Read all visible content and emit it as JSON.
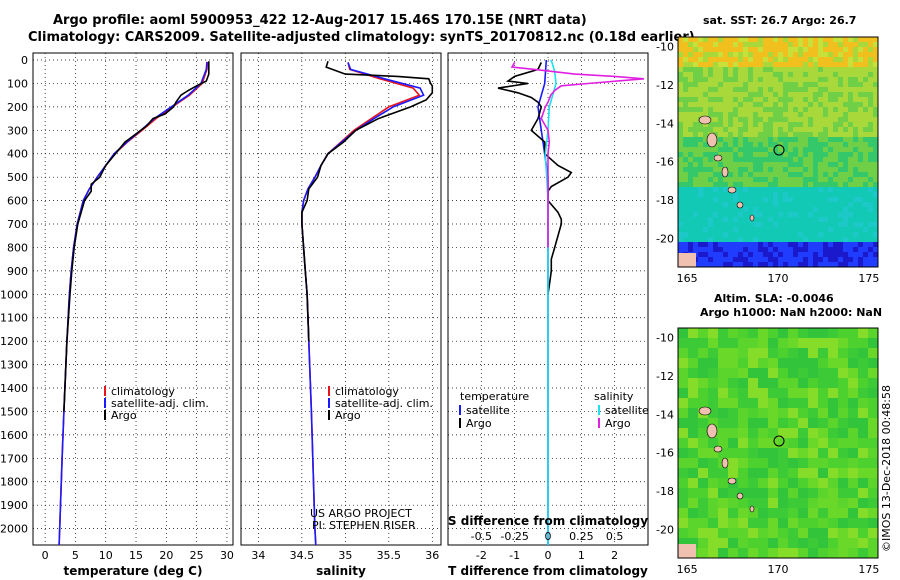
{
  "title_line1": "Argo profile: aoml 5900953_422 12-Aug-2017 15.46S 170.15E (NRT data)",
  "title_line2": "Climatology: CARS2009. Satellite-adjusted climatology: synTS_20170812.nc (0.18d earlier)",
  "colors": {
    "climatology": "#e8141c",
    "satellite": "#1a1aff",
    "argo": "#000000",
    "s_satellite": "#1ee0f0",
    "s_argo": "#e020e0"
  },
  "depth_axis": {
    "ticks": [
      0,
      100,
      200,
      300,
      400,
      500,
      600,
      700,
      800,
      900,
      1000,
      1100,
      1200,
      1300,
      1400,
      1500,
      1600,
      1700,
      1800,
      1900,
      2000
    ],
    "range": [
      2070,
      -30
    ]
  },
  "chart_data": [
    {
      "type": "line",
      "name": "temperature-profile",
      "xlabel": "temperature (deg C)",
      "xlim": [
        -2,
        31
      ],
      "xticks": [
        0,
        5,
        10,
        15,
        20,
        25,
        30
      ],
      "ylim": [
        2070,
        -30
      ],
      "legend": [
        "climatology",
        "satellite-adj. clim.",
        "Argo"
      ],
      "series": [
        {
          "name": "climatology",
          "depth": [
            8,
            40,
            100,
            150,
            200,
            250,
            300,
            350,
            400,
            500,
            550,
            600,
            700,
            800,
            900,
            1000,
            1200,
            1500,
            1700,
            2000,
            2070
          ],
          "values": [
            26.8,
            26.7,
            25.9,
            23.8,
            21,
            18.3,
            16,
            13.6,
            11.5,
            8.6,
            7.3,
            6.3,
            5.3,
            4.7,
            4.3,
            4,
            3.6,
            3.1,
            2.8,
            2.4,
            2.3
          ]
        },
        {
          "name": "satellite-adj. clim.",
          "depth": [
            8,
            40,
            100,
            150,
            200,
            250,
            300,
            350,
            400,
            500,
            550,
            600,
            700,
            800,
            900,
            1000,
            1200,
            1500,
            1700,
            2000,
            2070
          ],
          "values": [
            26.7,
            26.6,
            25.7,
            23.6,
            20.8,
            18,
            15.8,
            13.5,
            11.4,
            8.6,
            7.3,
            6.3,
            5.3,
            4.7,
            4.3,
            4,
            3.6,
            3.1,
            2.8,
            2.4,
            2.3
          ]
        },
        {
          "name": "Argo",
          "depth": [
            5,
            30,
            60,
            90,
            110,
            130,
            150,
            180,
            200,
            230,
            250,
            280,
            300,
            350,
            400,
            450,
            500,
            530,
            560,
            600,
            700,
            800,
            900,
            1000,
            1200,
            1500
          ],
          "values": [
            27,
            27,
            27,
            26.6,
            25,
            23.6,
            22.4,
            21.6,
            21.2,
            19.8,
            17.8,
            16.8,
            15.8,
            13.2,
            11.6,
            10,
            9,
            7.6,
            7.6,
            6.5,
            5.4,
            4.8,
            4.4,
            4.1,
            3.6,
            3.1
          ]
        }
      ]
    },
    {
      "type": "line",
      "name": "salinity-profile",
      "xlabel": "salinity",
      "xlim": [
        33.8,
        36.1
      ],
      "xticks": [
        34,
        34.5,
        35,
        35.5,
        36
      ],
      "ylim": [
        2070,
        -30
      ],
      "legend": [
        "climatology",
        "satellite-adj. clim.",
        "Argo"
      ],
      "series": [
        {
          "name": "climatology",
          "depth": [
            10,
            40,
            80,
            120,
            150,
            200,
            250,
            300,
            350,
            400,
            450,
            500,
            550,
            600,
            650,
            700,
            800,
            900,
            1000,
            1200,
            1500,
            2000,
            2070
          ],
          "values": [
            35.03,
            35.05,
            35.4,
            35.78,
            35.85,
            35.5,
            35.3,
            35.1,
            34.95,
            34.8,
            34.72,
            34.65,
            34.57,
            34.52,
            34.5,
            34.5,
            34.52,
            34.54,
            34.56,
            34.58,
            34.61,
            34.65,
            34.66
          ]
        },
        {
          "name": "satellite-adj. clim.",
          "depth": [
            10,
            40,
            80,
            120,
            150,
            200,
            250,
            300,
            350,
            400,
            450,
            500,
            550,
            600,
            650,
            700,
            800,
            900,
            1000,
            1200,
            1500,
            2000,
            2070
          ],
          "values": [
            35.03,
            35.06,
            35.45,
            35.86,
            35.9,
            35.55,
            35.33,
            35.12,
            34.96,
            34.8,
            34.72,
            34.65,
            34.57,
            34.52,
            34.5,
            34.5,
            34.52,
            34.54,
            34.56,
            34.58,
            34.61,
            34.65,
            34.66
          ]
        },
        {
          "name": "Argo",
          "depth": [
            5,
            30,
            60,
            70,
            80,
            100,
            110,
            140,
            170,
            200,
            250,
            300,
            350,
            400,
            450,
            500,
            550,
            600,
            650,
            700,
            800,
            900,
            1000,
            1100,
            1200
          ],
          "values": [
            34.8,
            34.78,
            35,
            35.6,
            35.96,
            35.98,
            36,
            36,
            35.93,
            35.75,
            35.38,
            35.12,
            34.98,
            34.8,
            34.72,
            34.68,
            34.58,
            34.56,
            34.5,
            34.5,
            34.52,
            34.54,
            34.56,
            34.57,
            34.58
          ]
        }
      ]
    },
    {
      "type": "line",
      "name": "difference-profile",
      "xlabel": "T difference from climatology",
      "xlim": [
        -3,
        3
      ],
      "xticks": [
        -2,
        -1,
        0,
        1,
        2
      ],
      "s_axis_label": "S difference from climatology",
      "s_xticks": [
        -0.5,
        -0.25,
        0,
        0.25,
        0.5
      ],
      "s_xlim": [
        -0.75,
        0.75
      ],
      "ylim": [
        2070,
        -30
      ],
      "legend_headers": [
        "temperature",
        "salinity"
      ],
      "legend": [
        "satellite",
        "Argo",
        "satellite",
        "Argo"
      ],
      "series": [
        {
          "name": "T satellite",
          "depth": [
            0,
            100,
            200,
            300,
            350,
            400,
            500,
            600,
            700,
            800,
            2070
          ],
          "values": [
            -0.05,
            -0.1,
            -0.3,
            -0.2,
            -0.15,
            -0.1,
            0,
            0,
            0,
            0,
            0
          ]
        },
        {
          "name": "T Argo",
          "depth": [
            10,
            40,
            70,
            90,
            100,
            120,
            140,
            160,
            180,
            200,
            250,
            300,
            350,
            400,
            450,
            480,
            500,
            540,
            560,
            600,
            650,
            680,
            700,
            750,
            800,
            850,
            900,
            950,
            1000
          ],
          "values": [
            -0.2,
            -0.3,
            -1,
            -1.2,
            -0.6,
            -1.5,
            -0.9,
            -0.5,
            -0.3,
            -0.2,
            -0.3,
            -0.5,
            -0.1,
            -0.1,
            0.3,
            0.7,
            0.6,
            0.1,
            0,
            0,
            0.3,
            0.4,
            0.4,
            0.3,
            0.2,
            0.1,
            0.1,
            0.05,
            0
          ]
        },
        {
          "name": "S satellite",
          "depth": [
            0,
            10,
            50,
            100,
            200,
            300,
            400,
            500,
            600,
            800,
            1000,
            2070
          ],
          "values": [
            0.02,
            0.03,
            0.05,
            0.06,
            0.01,
            0,
            -0.02,
            -0.01,
            0,
            0,
            0,
            0
          ]
        },
        {
          "name": "S Argo",
          "depth": [
            10,
            30,
            40,
            60,
            70,
            80,
            100,
            110,
            130,
            150,
            180,
            200,
            250,
            300,
            350,
            400,
            500,
            600,
            700,
            800
          ],
          "values": [
            -0.25,
            -0.27,
            -0.1,
            0.2,
            0.5,
            0.72,
            0.3,
            0.1,
            0.05,
            0.02,
            0,
            -0.02,
            -0.05,
            0,
            0.01,
            0,
            0,
            0,
            0,
            0
          ]
        }
      ]
    }
  ],
  "labels": {
    "project": "US ARGO PROJECT",
    "pi": "PI: STEPHEN RISER",
    "depth_tick_label_skip": ""
  },
  "maps": {
    "sst": {
      "title": "sat. SST: 26.7 Argo: 26.7",
      "yticks": [
        "-10",
        "-12",
        "-14",
        "-16",
        "-18",
        "-20"
      ],
      "xticks": [
        "165",
        "170",
        "175"
      ]
    },
    "sla": {
      "title_line1": "Altim. SLA: -0.0046",
      "title_line2": "Argo h1000: NaN h2000: NaN",
      "yticks": [
        "-10",
        "-12",
        "-14",
        "-16",
        "-18",
        "-20"
      ],
      "xticks": [
        "165",
        "170",
        "175"
      ]
    }
  },
  "stamp": "©IMOS 13-Dec-2018 00:48:58"
}
